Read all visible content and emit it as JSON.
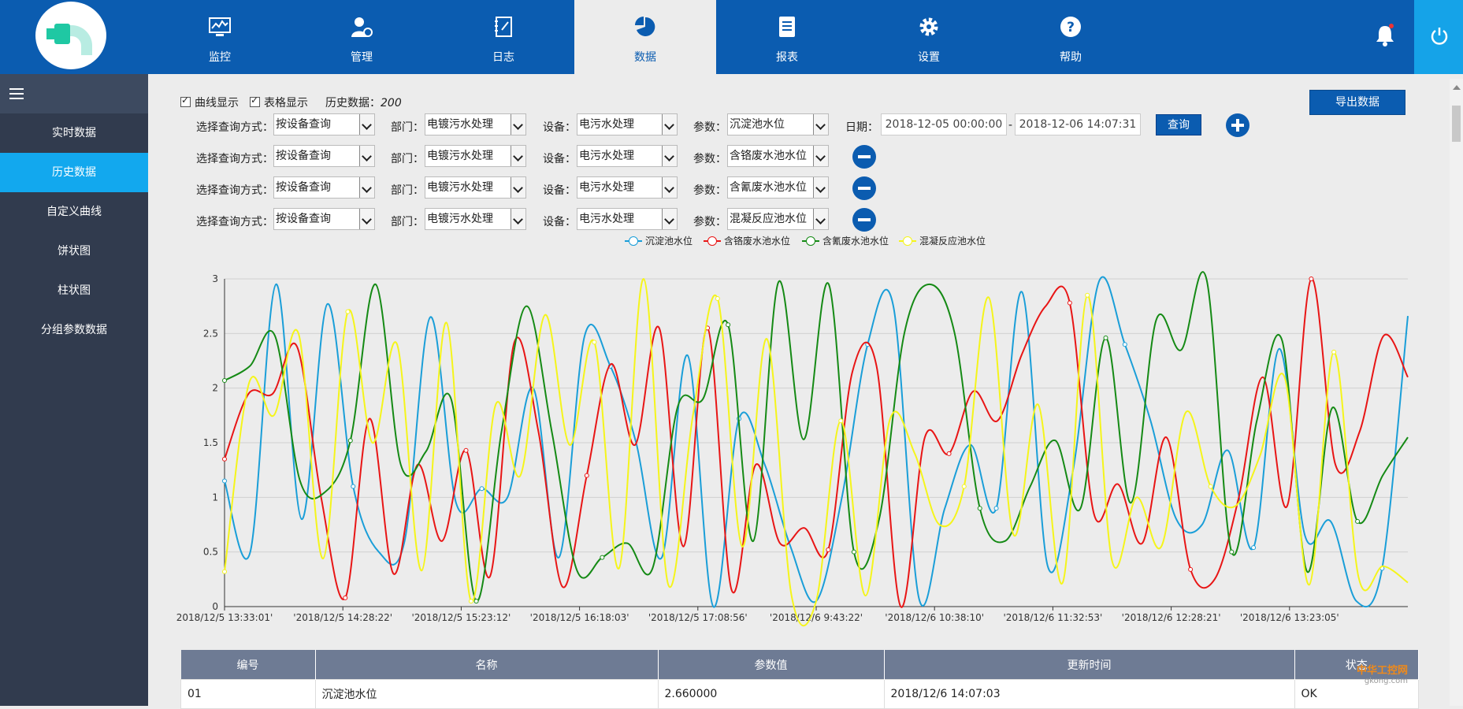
{
  "nav": {
    "items": [
      {
        "label": "监控",
        "icon": "monitor-chart-icon"
      },
      {
        "label": "管理",
        "icon": "user-gear-icon"
      },
      {
        "label": "日志",
        "icon": "notebook-icon"
      },
      {
        "label": "数据",
        "icon": "pie-chart-icon"
      },
      {
        "label": "报表",
        "icon": "document-icon"
      },
      {
        "label": "设置",
        "icon": "gear-icon"
      },
      {
        "label": "帮助",
        "icon": "help-icon"
      }
    ],
    "active": "数据"
  },
  "sidebar": {
    "items": [
      {
        "label": "实时数据"
      },
      {
        "label": "历史数据"
      },
      {
        "label": "自定义曲线"
      },
      {
        "label": "饼状图"
      },
      {
        "label": "柱状图"
      },
      {
        "label": "分组参数数据"
      }
    ],
    "active": "历史数据"
  },
  "options": {
    "curve_label": "曲线显示",
    "curve_checked": true,
    "table_label": "表格显示",
    "table_checked": true,
    "history_label": "历史数据：",
    "history_count": "200"
  },
  "export_label": "导出数据",
  "query": {
    "method_label": "选择查询方式：",
    "dept_label": "部门：",
    "device_label": "设备：",
    "param_label": "参数：",
    "date_label": "日期：",
    "date_from": "2018-12-05 00:00:00",
    "date_sep": "-",
    "date_to": "2018-12-06 14:07:31",
    "query_button": "查询",
    "rows": [
      {
        "method": "按设备查询",
        "dept": "电镀污水处理",
        "device": "电污水处理",
        "param": "沉淀池水位"
      },
      {
        "method": "按设备查询",
        "dept": "电镀污水处理",
        "device": "电污水处理",
        "param": "含铬废水池水位"
      },
      {
        "method": "按设备查询",
        "dept": "电镀污水处理",
        "device": "电污水处理",
        "param": "含氰废水池水位"
      },
      {
        "method": "按设备查询",
        "dept": "电镀污水处理",
        "device": "电污水处理",
        "param": "混凝反应池水位"
      }
    ]
  },
  "chart_data": {
    "type": "line",
    "ylim": [
      0,
      3
    ],
    "yticks": [
      "0",
      "0.5",
      "1",
      "1.5",
      "2",
      "2.5",
      "3"
    ],
    "grid": true,
    "legend_position": "top-center",
    "xticks": [
      "2018/12/5 13:33:01'",
      "'2018/12/5 14:28:22'",
      "'2018/12/5 15:23:12'",
      "'2018/12/5 16:18:03'",
      "'2018/12/5 17:08:56'",
      "'2018/12/6 9:43:22'",
      "'2018/12/6 10:38:10'",
      "'2018/12/6 11:32:53'",
      "'2018/12/6 12:28:21'",
      "'2018/12/6 13:23:05'"
    ],
    "series": [
      {
        "name": "沉淀池水位",
        "color": "#1a9ed8",
        "values": [
          1.15,
          0.5,
          2.95,
          0.8,
          2.77,
          1.1,
          0.5,
          0.6,
          2.65,
          0.95,
          1.08,
          1.0,
          2.0,
          0.45,
          2.48,
          2.2,
          1.5,
          0.45,
          2.3,
          0.0,
          1.72,
          1.3,
          0.55,
          0.05,
          1.0,
          2.4,
          2.75,
          0.07,
          0.9,
          1.48,
          0.9,
          2.88,
          0.37,
          1.27,
          2.98,
          2.4,
          1.7,
          0.8,
          0.75,
          1.43,
          0.54,
          2.36,
          0.65,
          0.78,
          0.05,
          0.35,
          2.66
        ]
      },
      {
        "name": "含铬废水池水位",
        "color": "#e81515",
        "values": [
          1.35,
          1.95,
          1.95,
          2.38,
          1.0,
          0.08,
          1.72,
          0.3,
          1.3,
          0.6,
          1.43,
          0.28,
          2.42,
          1.6,
          0.18,
          1.2,
          2.22,
          1.48,
          2.55,
          0.55,
          2.55,
          0.15,
          1.3,
          0.58,
          0.72,
          0.52,
          2.15,
          2.2,
          0.0,
          1.55,
          1.4,
          1.97,
          1.7,
          2.3,
          2.75,
          2.78,
          0.85,
          1.12,
          0.58,
          1.55,
          0.34,
          0.25,
          1.0,
          2.1,
          0.92,
          3.0,
          1.3,
          1.6,
          2.48,
          2.1
        ]
      },
      {
        "name": "含氰废水池水位",
        "color": "#158a15",
        "values": [
          2.07,
          2.2,
          2.48,
          1.15,
          1.05,
          1.52,
          2.95,
          1.3,
          1.42,
          1.9,
          0.05,
          1.6,
          2.75,
          1.6,
          0.33,
          0.45,
          0.58,
          0.35,
          1.83,
          1.9,
          2.58,
          0.6,
          2.97,
          1.53,
          2.95,
          0.5,
          0.8,
          2.5,
          2.95,
          2.5,
          0.9,
          0.6,
          1.1,
          1.52,
          0.9,
          2.46,
          0.95,
          2.62,
          2.35,
          3.0,
          0.5,
          1.7,
          2.44,
          0.32,
          1.82,
          0.78,
          1.2,
          1.55
        ]
      },
      {
        "name": "混凝反应池水位",
        "color": "#f5f51a",
        "values": [
          0.32,
          2.05,
          1.75,
          2.5,
          0.44,
          2.7,
          1.5,
          2.4,
          0.33,
          2.6,
          0.05,
          1.85,
          1.2,
          2.67,
          1.48,
          2.42,
          0.35,
          3.0,
          0.2,
          1.75,
          2.82,
          0.55,
          2.45,
          0.1,
          0.05,
          1.7,
          0.1,
          1.72,
          1.4,
          0.75,
          1.1,
          2.83,
          0.66,
          1.85,
          0.22,
          2.85,
          0.42,
          1.0,
          0.55,
          1.78,
          1.1,
          0.92,
          1.38,
          2.1,
          0.2,
          2.33,
          0.27,
          0.37,
          0.22
        ]
      }
    ]
  },
  "table": {
    "headers": [
      "编号",
      "名称",
      "参数值",
      "更新时间",
      "状态"
    ],
    "rows": [
      [
        "01",
        "沉淀池水位",
        "2.660000",
        "2018/12/6 14:07:03",
        "OK"
      ]
    ]
  },
  "watermark": {
    "line1": "中华工控网",
    "line2": "gkong.com"
  }
}
